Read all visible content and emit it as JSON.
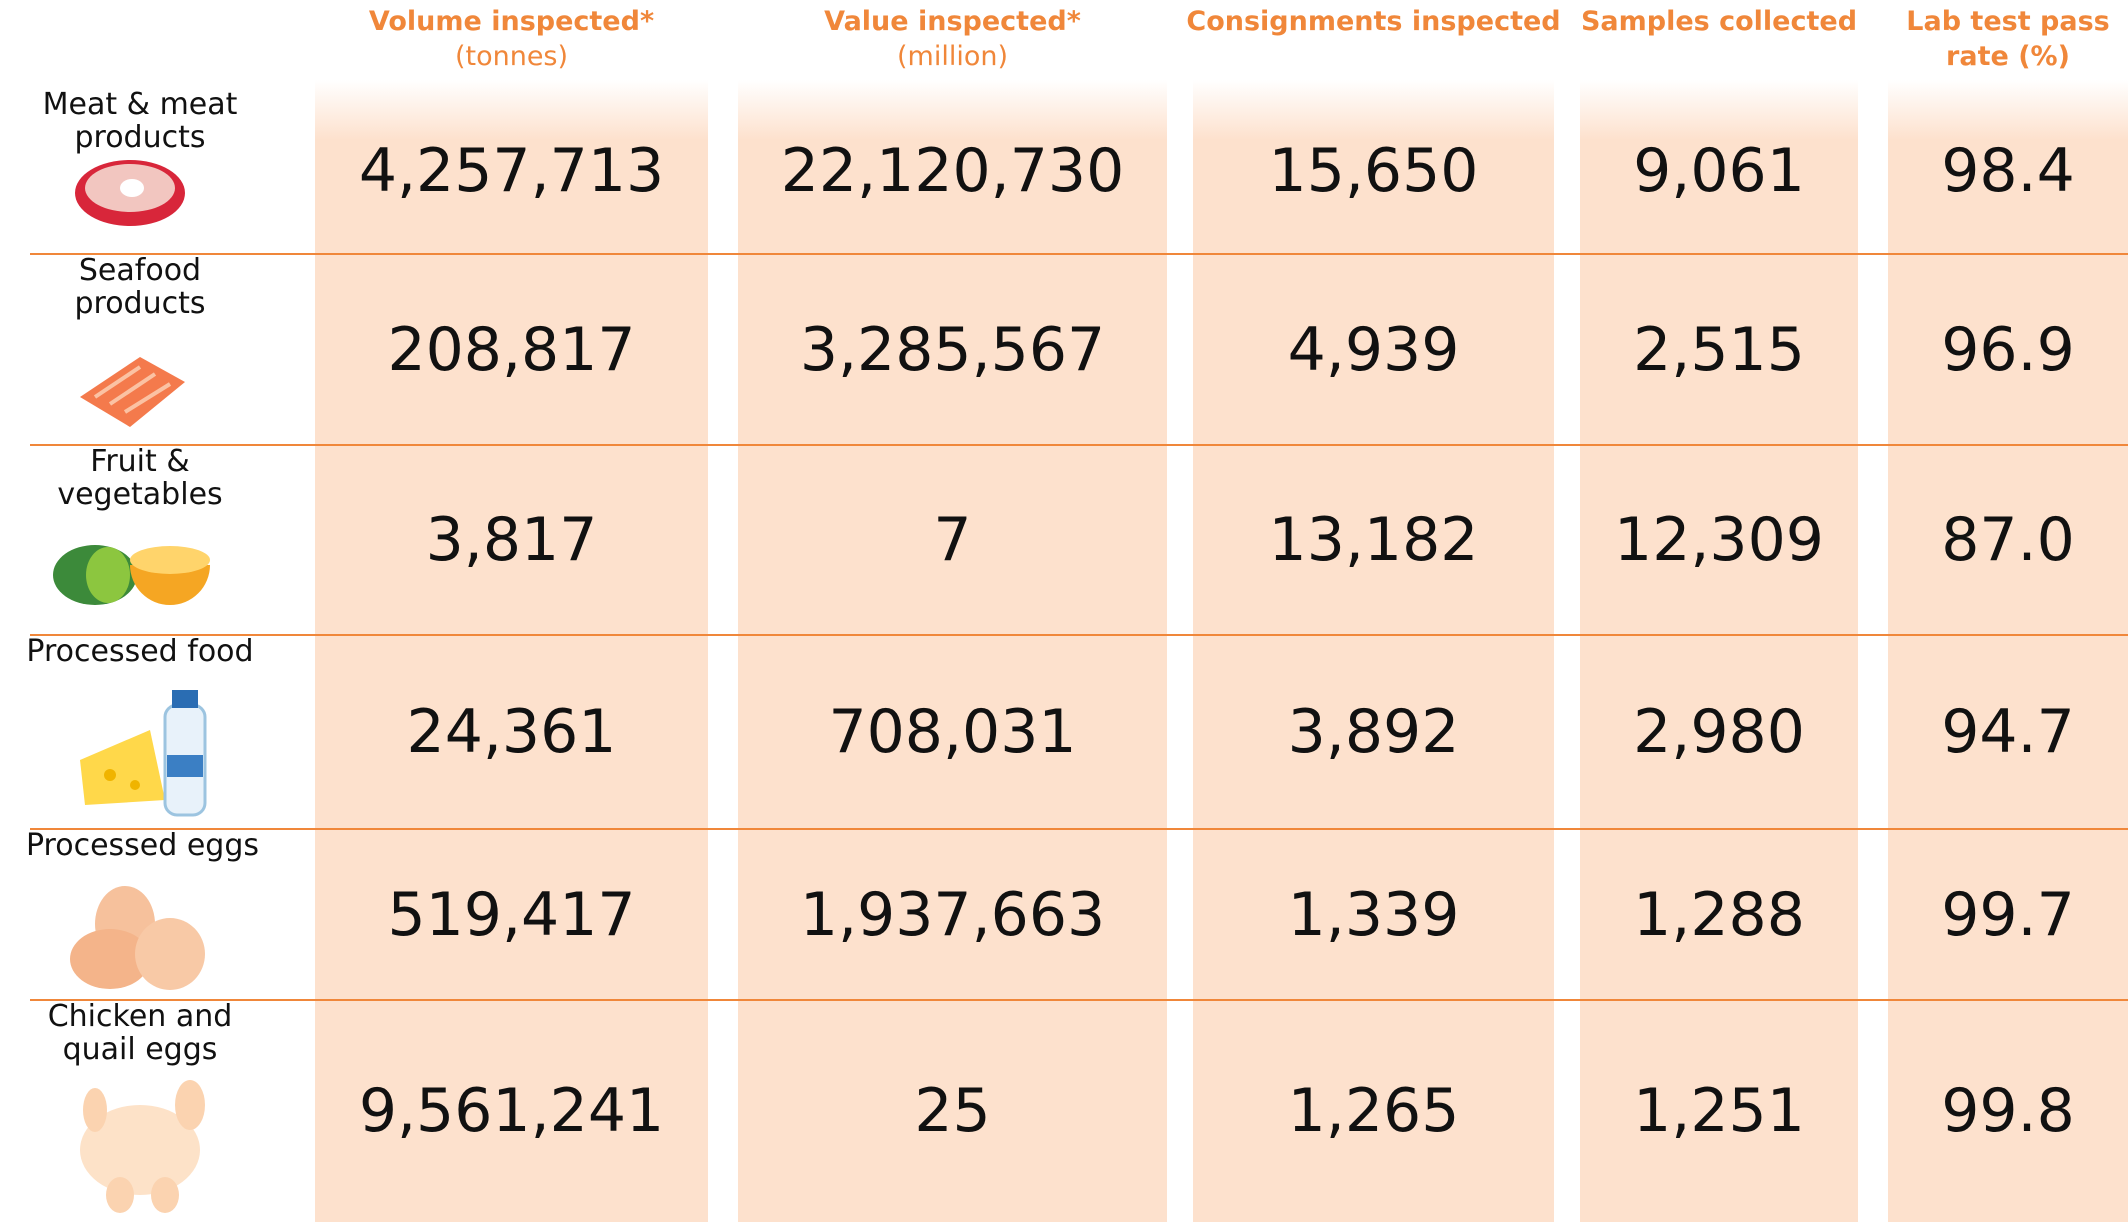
{
  "table": {
    "headers": [
      {
        "title": "Volume inspected*",
        "subtitle": "(tonnes)"
      },
      {
        "title": "Value inspected*",
        "subtitle": "(million)"
      },
      {
        "title": "Consignments inspected"
      },
      {
        "title": "Samples collected"
      },
      {
        "title": "Lab test pass rate (%)"
      }
    ],
    "rows": [
      {
        "label": "Meat & meat products",
        "values": [
          "4,257,713",
          "22,120,730",
          "15,650",
          "9,061",
          "98.4"
        ]
      },
      {
        "label": "Seafood products",
        "values": [
          "208,817",
          "3,285,567",
          "4,939",
          "2,515",
          "96.9"
        ]
      },
      {
        "label": "Fruit & vegetables",
        "values": [
          "3,817",
          "7",
          "13,182",
          "12,309",
          "87.0"
        ]
      },
      {
        "label": "Processed food",
        "values": [
          "24,361",
          "708,031",
          "3,892",
          "2,980",
          "94.7"
        ]
      },
      {
        "label": "Processed eggs",
        "values": [
          "519,417",
          "1,937,663",
          "1,339",
          "1,288",
          "99.7"
        ]
      },
      {
        "label": "Chicken and quail eggs",
        "values": [
          "9,561,241",
          "25",
          "1,265",
          "1,251",
          "99.8"
        ]
      }
    ]
  }
}
